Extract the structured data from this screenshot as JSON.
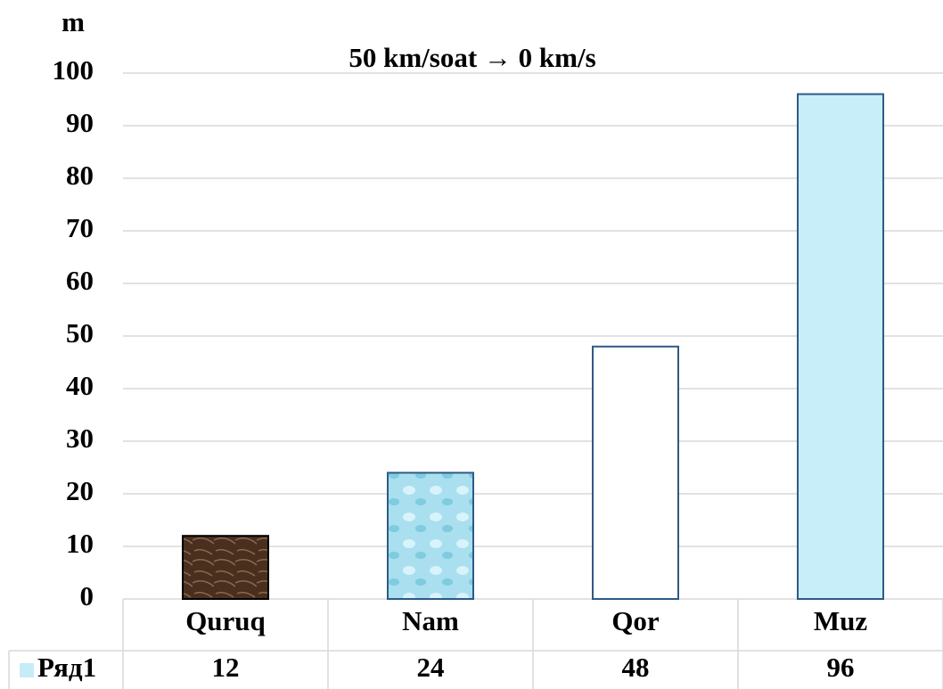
{
  "chart_data": {
    "type": "bar",
    "title": "50 km/soat → 0 km/s",
    "y_label": "m",
    "categories": [
      "Quruq",
      "Nam",
      "Qor",
      "Muz"
    ],
    "series": [
      {
        "name": "Ряд1",
        "color": "#c6ecf8",
        "values": [
          12,
          24,
          48,
          96
        ]
      }
    ],
    "colors": [
      "#4a2f1f",
      "#a9dfee",
      "#ffffff",
      "#c8eef9"
    ],
    "ylim": [
      0,
      100
    ],
    "yticks": [
      0,
      10,
      20,
      30,
      40,
      50,
      60,
      70,
      80,
      90,
      100
    ],
    "grid": true,
    "data_table": true
  }
}
